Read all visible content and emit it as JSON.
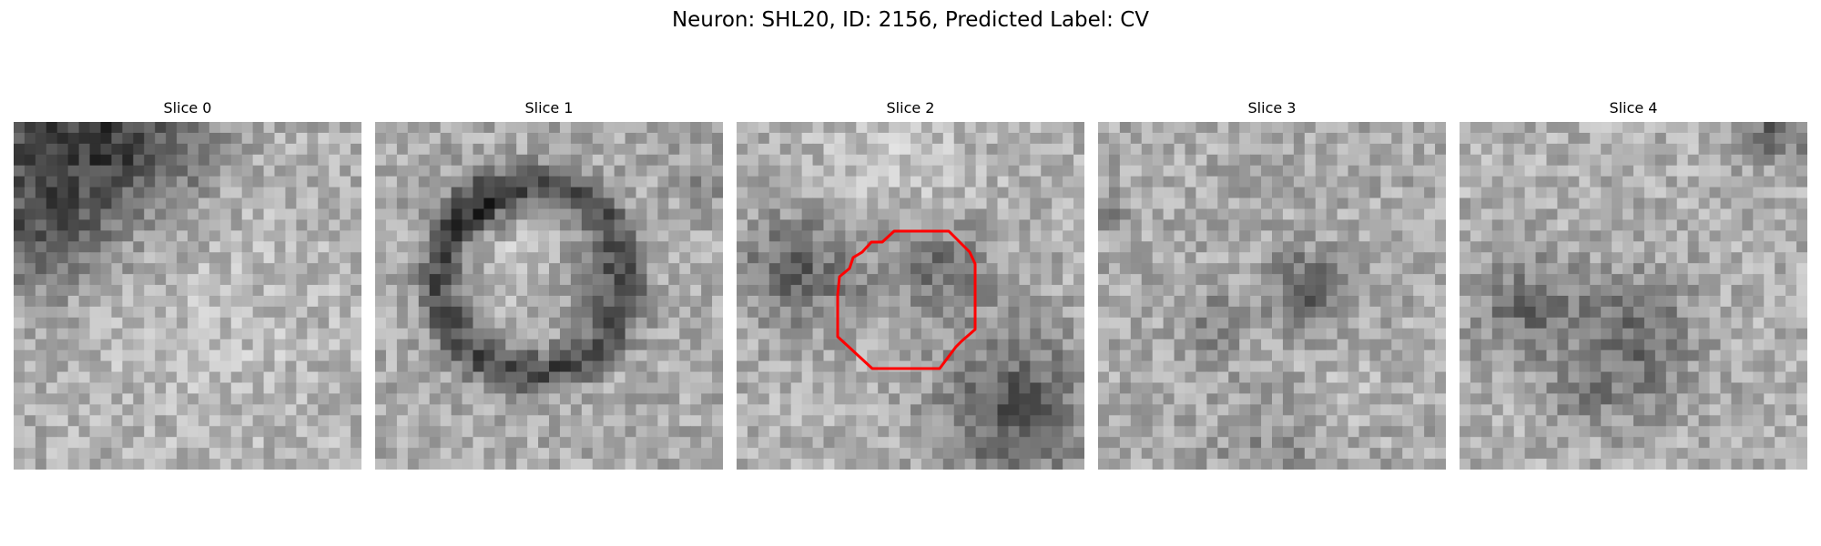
{
  "figure": {
    "title": "Neuron: SHL20, ID: 2156, Predicted Label: CV"
  },
  "panels": [
    {
      "title": "Slice 0",
      "image": "grayscale-em-slice",
      "shows_roi_outline": false
    },
    {
      "title": "Slice 1",
      "image": "grayscale-em-slice",
      "shows_roi_outline": false
    },
    {
      "title": "Slice 2",
      "image": "grayscale-em-slice",
      "shows_roi_outline": true
    },
    {
      "title": "Slice 3",
      "image": "grayscale-em-slice",
      "shows_roi_outline": false
    },
    {
      "title": "Slice 4",
      "image": "grayscale-em-slice",
      "shows_roi_outline": false
    }
  ],
  "roi": {
    "outline_color": "#ff0000",
    "on_panel": "Slice 2"
  },
  "colors": {
    "background": "#ffffff",
    "colormap": "grayscale"
  }
}
